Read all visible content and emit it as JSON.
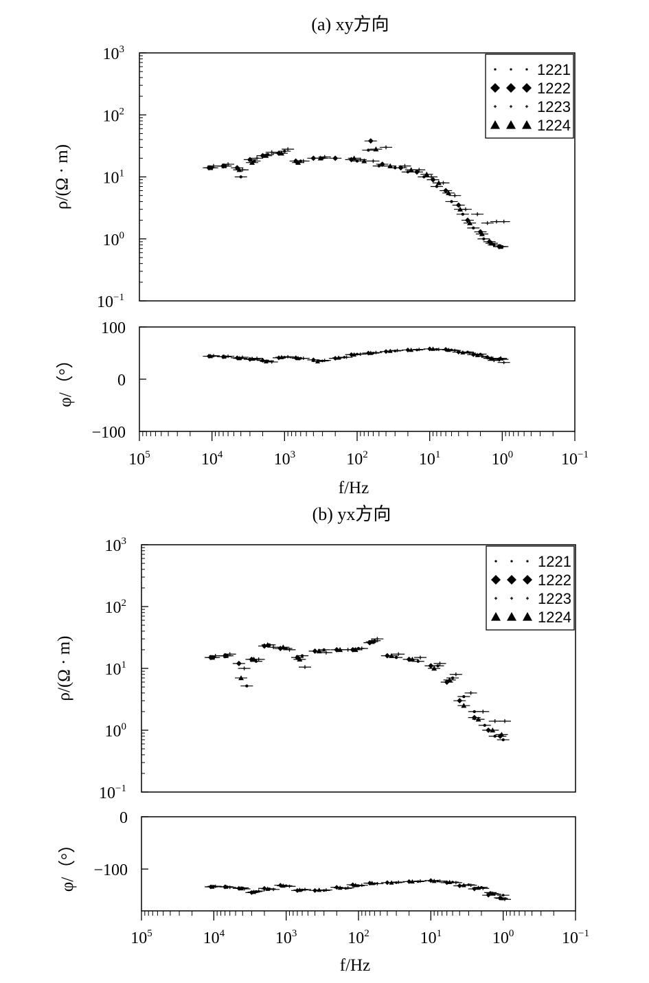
{
  "chart_data": [
    {
      "type": "scatter",
      "title": "(a) xy方向",
      "xlabel": "f/Hz",
      "xscale": "log",
      "xlim": [
        100000,
        0.1
      ],
      "x_ticks": [
        {
          "base": "10",
          "exp": "5"
        },
        {
          "base": "10",
          "exp": "4"
        },
        {
          "base": "10",
          "exp": "3"
        },
        {
          "base": "10",
          "exp": "2"
        },
        {
          "base": "10",
          "exp": "1"
        },
        {
          "base": "10",
          "exp": "0"
        },
        {
          "base": "10",
          "exp": "−1"
        }
      ],
      "legend": {
        "placement": "top-right",
        "entries": [
          "1221",
          "1222",
          "1223",
          "1224"
        ]
      },
      "rho": {
        "ylabel": "ρ/(Ω · m)",
        "yscale": "log",
        "ylim": [
          0.1,
          1000
        ],
        "y_ticks": [
          {
            "base": "10",
            "exp": "3"
          },
          {
            "base": "10",
            "exp": "2"
          },
          {
            "base": "10",
            "exp": "1"
          },
          {
            "base": "10",
            "exp": "0"
          },
          {
            "base": "10",
            "exp": "−1"
          }
        ],
        "series": [
          {
            "name": "1221",
            "x": [
              10000,
              6500,
              4000,
              2600,
              1700,
              1000,
              600,
              300,
              100,
              70,
              50,
              30,
              20,
              12,
              8,
              5,
              3.5,
              2.5,
              1.8,
              1.3,
              1.0
            ],
            "y": [
              14,
              15,
              10,
              18,
              23,
              26,
              18,
              20,
              18,
              27,
              15,
              14,
              12,
              10,
              7,
              4,
              2.5,
              1.5,
              1.0,
              0.8,
              0.75
            ]
          },
          {
            "name": "1222",
            "x": [
              11000,
              7000,
              4500,
              3000,
              2000,
              1200,
              700,
              400,
              200,
              120,
              65,
              45,
              25,
              15,
              9,
              6,
              4,
              3,
              2,
              1.5,
              1.1
            ],
            "y": [
              14,
              15,
              14,
              19,
              22,
              24,
              18,
              20,
              20,
              19,
              38,
              16,
              14,
              12,
              9,
              6,
              3.5,
              2,
              1.3,
              0.9,
              0.75
            ]
          },
          {
            "name": "1223",
            "x": [
              9500,
              6000,
              3800,
              2400,
              1500,
              900,
              550,
              280,
              90,
              60,
              40,
              22,
              14,
              9.5,
              6.5,
              4.5,
              3.2,
              2.2,
              1.6,
              1.2,
              0.95
            ],
            "y": [
              15,
              16,
              13,
              20,
              25,
              28,
              18,
              21,
              19,
              18,
              30,
              15,
              13,
              10,
              8,
              5,
              3,
              2.5,
              1.8,
              1.9,
              1.9
            ]
          },
          {
            "name": "1224",
            "x": [
              10500,
              6800,
              4200,
              2800,
              1800,
              1100,
              650,
              320,
              110,
              80,
              55,
              35,
              18,
              11,
              7.5,
              5.5,
              3.8,
              2.8,
              1.9,
              1.4,
              1.05
            ],
            "y": [
              14,
              15,
              13,
              17,
              22,
              24,
              17,
              20,
              20,
              18,
              28,
              15,
              13,
              11,
              8,
              5.5,
              3,
              1.8,
              1.2,
              0.85,
              0.75
            ]
          }
        ]
      },
      "phase": {
        "ylabel": "φ/（°）",
        "ylim": [
          -100,
          100
        ],
        "y_ticks": [
          "100",
          "0",
          "−100"
        ],
        "series": [
          {
            "name": "1221",
            "x": [
              10000,
              6500,
              4000,
              2600,
              1700,
              1000,
              600,
              300,
              150,
              100,
              60,
              30,
              15,
              8,
              5,
              3,
              2,
              1.5,
              1.0
            ],
            "y": [
              44,
              43,
              40,
              38,
              35,
              42,
              40,
              35,
              42,
              48,
              50,
              54,
              56,
              57,
              56,
              52,
              48,
              40,
              38
            ]
          },
          {
            "name": "1222",
            "x": [
              11000,
              7000,
              4500,
              3000,
              2000,
              1200,
              700,
              400,
              200,
              120,
              70,
              40,
              20,
              10,
              6,
              4,
              2.5,
              1.6,
              1.1
            ],
            "y": [
              44,
              43,
              41,
              38,
              36,
              41,
              41,
              37,
              40,
              47,
              50,
              53,
              56,
              58,
              57,
              52,
              47,
              42,
              38
            ]
          },
          {
            "name": "1223",
            "x": [
              9500,
              6000,
              3800,
              2400,
              1500,
              900,
              550,
              280,
              140,
              90,
              55,
              28,
              14,
              7.5,
              4.5,
              2.8,
              1.9,
              1.3,
              0.95
            ],
            "y": [
              45,
              44,
              42,
              40,
              33,
              43,
              40,
              36,
              42,
              48,
              51,
              55,
              57,
              57,
              55,
              50,
              44,
              36,
              32
            ]
          },
          {
            "name": "1224",
            "x": [
              10500,
              6800,
              4200,
              2800,
              1800,
              1100,
              650,
              350,
              180,
              110,
              65,
              35,
              18,
              9,
              5.5,
              3.5,
              2.2,
              1.4,
              1.05
            ],
            "y": [
              44,
              43,
              40,
              39,
              34,
              42,
              40,
              34,
              41,
              47,
              50,
              54,
              56,
              58,
              56,
              51,
              46,
              40,
              40
            ]
          }
        ]
      }
    },
    {
      "type": "scatter",
      "title": "(b) yx方向",
      "xlabel": "f/Hz",
      "xscale": "log",
      "xlim": [
        100000,
        0.1
      ],
      "x_ticks": [
        {
          "base": "10",
          "exp": "5"
        },
        {
          "base": "10",
          "exp": "4"
        },
        {
          "base": "10",
          "exp": "3"
        },
        {
          "base": "10",
          "exp": "2"
        },
        {
          "base": "10",
          "exp": "1"
        },
        {
          "base": "10",
          "exp": "0"
        },
        {
          "base": "10",
          "exp": "−1"
        }
      ],
      "legend": {
        "placement": "top-right",
        "entries": [
          "1221",
          "1222",
          "1223",
          "1224"
        ]
      },
      "rho": {
        "ylabel": "ρ/(Ω · m)",
        "yscale": "log",
        "ylim": [
          0.1,
          1000
        ],
        "y_ticks": [
          {
            "base": "10",
            "exp": "3"
          },
          {
            "base": "10",
            "exp": "2"
          },
          {
            "base": "10",
            "exp": "1"
          },
          {
            "base": "10",
            "exp": "0"
          },
          {
            "base": "10",
            "exp": "−1"
          }
        ],
        "series": [
          {
            "name": "1221",
            "x": [
              10000,
              6500,
              3500,
              2600,
              1700,
              1000,
              600,
              300,
              100,
              60,
              30,
              15,
              8,
              5,
              3.5,
              2.5,
              1.8,
              1.3,
              1.0
            ],
            "y": [
              15,
              16,
              5.2,
              13,
              24,
              21,
              16,
              20,
              21,
              28,
              15,
              13,
              11,
              7,
              3.5,
              2,
              1.2,
              0.8,
              0.7
            ]
          },
          {
            "name": "1222",
            "x": [
              11000,
              7000,
              4500,
              3000,
              2000,
              1200,
              700,
              400,
              200,
              120,
              70,
              40,
              20,
              10,
              6,
              4,
              2.5,
              1.6,
              1.1
            ],
            "y": [
              15,
              16,
              12,
              14,
              23,
              21,
              15,
              19,
              20,
              20,
              26,
              16,
              14,
              11,
              6,
              3,
              1.6,
              1.0,
              0.8
            ]
          },
          {
            "name": "1223",
            "x": [
              9500,
              6000,
              3800,
              2400,
              1500,
              900,
              550,
              280,
              140,
              90,
              55,
              28,
              14,
              7.5,
              4.5,
              2.8,
              1.9,
              1.3,
              0.95
            ],
            "y": [
              16,
              17,
              10,
              14,
              22,
              20,
              10.5,
              18,
              20,
              21,
              30,
              17,
              15,
              12,
              8,
              4,
              2,
              1.4,
              1.4
            ]
          },
          {
            "name": "1224",
            "x": [
              10500,
              6800,
              4200,
              2800,
              1800,
              1100,
              650,
              350,
              180,
              110,
              65,
              35,
              18,
              9,
              5.5,
              3.5,
              2.2,
              1.4,
              1.05
            ],
            "y": [
              15,
              16,
              7,
              14,
              24,
              22,
              14,
              19,
              20,
              20,
              27,
              16,
              14,
              10,
              6.5,
              2.5,
              1.5,
              1.0,
              0.85
            ]
          }
        ]
      },
      "phase": {
        "ylabel": "φ/（°）",
        "ylim": [
          -180,
          0
        ],
        "y_ticks": [
          "0",
          "−100"
        ],
        "series": [
          {
            "name": "1221",
            "x": [
              10000,
              6500,
              4000,
              2600,
              1700,
              1000,
              600,
              300,
              150,
              100,
              60,
              30,
              15,
              8,
              5,
              3,
              2,
              1.5,
              1.0
            ],
            "y": [
              -133,
              -134,
              -136,
              -143,
              -138,
              -132,
              -140,
              -141,
              -137,
              -132,
              -128,
              -126,
              -124,
              -123,
              -125,
              -130,
              -135,
              -145,
              -150
            ]
          },
          {
            "name": "1222",
            "x": [
              11000,
              7000,
              4500,
              3000,
              2000,
              1200,
              700,
              400,
              200,
              120,
              70,
              40,
              20,
              10,
              6,
              4,
              2.5,
              1.6,
              1.1
            ],
            "y": [
              -134,
              -134,
              -137,
              -145,
              -137,
              -131,
              -141,
              -141,
              -135,
              -130,
              -127,
              -126,
              -124,
              -122,
              -126,
              -132,
              -138,
              -150,
              -155
            ]
          },
          {
            "name": "1223",
            "x": [
              9500,
              6000,
              3800,
              2400,
              1500,
              900,
              550,
              280,
              140,
              90,
              55,
              28,
              14,
              7.5,
              4.5,
              2.8,
              1.9,
              1.3,
              0.95
            ],
            "y": [
              -133,
              -135,
              -138,
              -142,
              -139,
              -133,
              -139,
              -140,
              -136,
              -131,
              -128,
              -125,
              -123,
              -123,
              -126,
              -131,
              -137,
              -148,
              -158
            ]
          },
          {
            "name": "1224",
            "x": [
              10500,
              6800,
              4200,
              2800,
              1800,
              1100,
              650,
              350,
              180,
              110,
              65,
              35,
              18,
              9,
              5.5,
              3.5,
              2.2,
              1.4,
              1.05
            ],
            "y": [
              -134,
              -134,
              -137,
              -144,
              -138,
              -132,
              -140,
              -140,
              -136,
              -131,
              -127,
              -126,
              -124,
              -123,
              -125,
              -131,
              -136,
              -147,
              -156
            ]
          }
        ]
      }
    }
  ]
}
